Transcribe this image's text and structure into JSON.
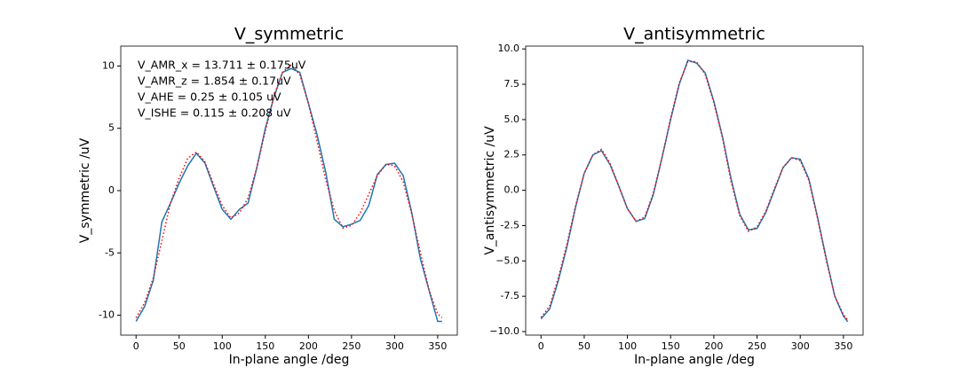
{
  "chart_data": [
    {
      "type": "line",
      "title": "V_symmetric",
      "x_label": "In-plane angle /deg",
      "y_label": "V_symmetric /uV",
      "annotations": [
        "V_AMR_x = 13.711 ± 0.175uV",
        "V_AMR_z = 1.854 ± 0.17uV",
        "V_AHE = 0.25 ± 0.105 uV",
        "V_ISHE = 0.115 ± 0.208 uV"
      ],
      "x": [
        0,
        10,
        20,
        30,
        40,
        50,
        60,
        70,
        80,
        90,
        100,
        110,
        120,
        130,
        140,
        150,
        160,
        170,
        180,
        190,
        200,
        210,
        220,
        230,
        240,
        250,
        260,
        270,
        280,
        290,
        300,
        310,
        320,
        330,
        340,
        350,
        355
      ],
      "series": [
        {
          "color": "#1f77b4",
          "linestyle": "solid",
          "values": [
            -10.5,
            -9.3,
            -7.2,
            -2.5,
            -1.0,
            0.6,
            2.0,
            3.0,
            2.2,
            0.3,
            -1.5,
            -2.3,
            -1.5,
            -1.0,
            1.8,
            5.0,
            7.5,
            9.5,
            9.8,
            9.5,
            7.0,
            4.5,
            1.5,
            -2.3,
            -2.9,
            -2.7,
            -2.4,
            -1.2,
            1.3,
            2.1,
            2.2,
            1.2,
            -1.8,
            -5.5,
            -8.0,
            -10.5,
            -10.5
          ]
        },
        {
          "color": "#ff0000",
          "linestyle": "dotted",
          "values": [
            -10.2,
            -9.0,
            -7.0,
            -4.0,
            -1.0,
            1.0,
            2.6,
            3.1,
            2.3,
            0.5,
            -1.2,
            -2.2,
            -1.8,
            -0.6,
            1.8,
            4.8,
            7.6,
            9.5,
            10.1,
            9.3,
            7.0,
            4.0,
            0.9,
            -1.6,
            -3.0,
            -2.8,
            -1.8,
            -0.3,
            1.2,
            2.1,
            2.0,
            0.7,
            -1.9,
            -5.0,
            -8.0,
            -9.9,
            -10.2
          ]
        }
      ],
      "xlim": [
        -17.75,
        372.75
      ],
      "xticks": [
        0,
        50,
        100,
        150,
        200,
        250,
        300,
        350
      ],
      "ylim": [
        -11.6,
        11.6
      ],
      "yticks": [
        -10,
        -5,
        0,
        5,
        10
      ]
    },
    {
      "type": "line",
      "title": "V_antisymmetric",
      "x_label": "In-plane angle /deg",
      "y_label": "V_antisymmetric /uV",
      "x": [
        0,
        10,
        20,
        30,
        40,
        50,
        60,
        70,
        80,
        90,
        100,
        110,
        120,
        130,
        140,
        150,
        160,
        170,
        180,
        190,
        200,
        210,
        220,
        230,
        240,
        250,
        260,
        270,
        280,
        290,
        300,
        310,
        320,
        330,
        340,
        350,
        355
      ],
      "series": [
        {
          "color": "#1f77b4",
          "linestyle": "solid",
          "values": [
            -9.1,
            -8.4,
            -6.4,
            -4.0,
            -1.2,
            1.2,
            2.5,
            2.8,
            1.8,
            0.3,
            -1.3,
            -2.2,
            -2.0,
            -0.3,
            2.3,
            5.0,
            7.5,
            9.2,
            9.0,
            8.3,
            6.3,
            3.8,
            0.8,
            -1.7,
            -2.8,
            -2.7,
            -1.6,
            0.0,
            1.6,
            2.3,
            2.2,
            0.8,
            -1.9,
            -4.8,
            -7.5,
            -8.9,
            -9.3
          ]
        },
        {
          "color": "#ff0000",
          "linestyle": "dotted",
          "values": [
            -9.0,
            -8.2,
            -6.2,
            -3.8,
            -1.1,
            1.2,
            2.5,
            2.9,
            1.9,
            0.3,
            -1.3,
            -2.2,
            -1.9,
            -0.2,
            2.3,
            5.1,
            7.6,
            9.1,
            9.1,
            8.2,
            6.2,
            3.7,
            0.6,
            -1.8,
            -2.9,
            -2.6,
            -1.5,
            0.1,
            1.6,
            2.3,
            2.1,
            0.7,
            -2.0,
            -4.9,
            -7.5,
            -8.8,
            -9.2
          ]
        }
      ],
      "xlim": [
        -17.75,
        372.75
      ],
      "xticks": [
        0,
        50,
        100,
        150,
        200,
        250,
        300,
        350
      ],
      "ylim": [
        -10.25,
        10.2
      ],
      "yticks": [
        {
          "value": -10,
          "label": "−10.0"
        },
        -7.5,
        {
          "value": -5,
          "label": "−5.0"
        },
        -2.5,
        {
          "value": 0,
          "label": "0.0"
        },
        2.5,
        {
          "value": 5,
          "label": "5.0"
        },
        7.5,
        {
          "value": 10,
          "label": "10.0"
        }
      ]
    }
  ]
}
